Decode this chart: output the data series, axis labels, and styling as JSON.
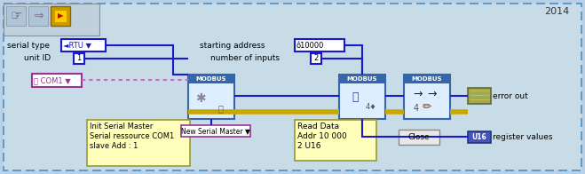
{
  "bg_outer": "#b8d0e8",
  "bg_inner": "#c8dce8",
  "border_color": "#5090c0",
  "title": "2014",
  "serial_type_label": "serial type",
  "rtu_text": "◄RTU ▼",
  "unit_id_label": "unit ID",
  "unit_id_val": "1",
  "com1_text": "⍉ COM1 ▼",
  "start_addr_label": "starting address",
  "start_addr_val": "ô10000",
  "num_inputs_label": "number of inputs",
  "num_inputs_val": "2",
  "modbus_label": "MODBUS",
  "new_serial_label": "New Serial Master ▼",
  "info1_line1": "Init Serial Master",
  "info1_line2": "Serial ressource COM1",
  "info1_line3": "slave Add : 1",
  "read_data_line1": "Read Data",
  "read_data_line2": "Addr 10 000",
  "read_data_line3": "2 U16",
  "close_text": "Close",
  "error_out_text": "error out",
  "reg_val_text": "register values",
  "u16_text": "U16",
  "wire_blue": "#1a1acc",
  "wire_yellow": "#c8a800",
  "wire_pink": "#cc66cc",
  "modbus_bg": "#ddeeff",
  "modbus_header": "#3366aa",
  "modbus_border": "#3366aa",
  "box_blue_border": "#1a1acc",
  "box_purple_border": "#993399",
  "box_yellow_fill": "#ffffbb",
  "box_yellow_border": "#999933",
  "error_fill": "#9aaa55",
  "error_border": "#666633",
  "u16_fill": "#4455bb",
  "u16_border": "#223388",
  "close_fill": "#e8e8e8",
  "close_border": "#888888",
  "toolbar_fill": "#c0d0dc",
  "toolbar_border": "#8090a0"
}
